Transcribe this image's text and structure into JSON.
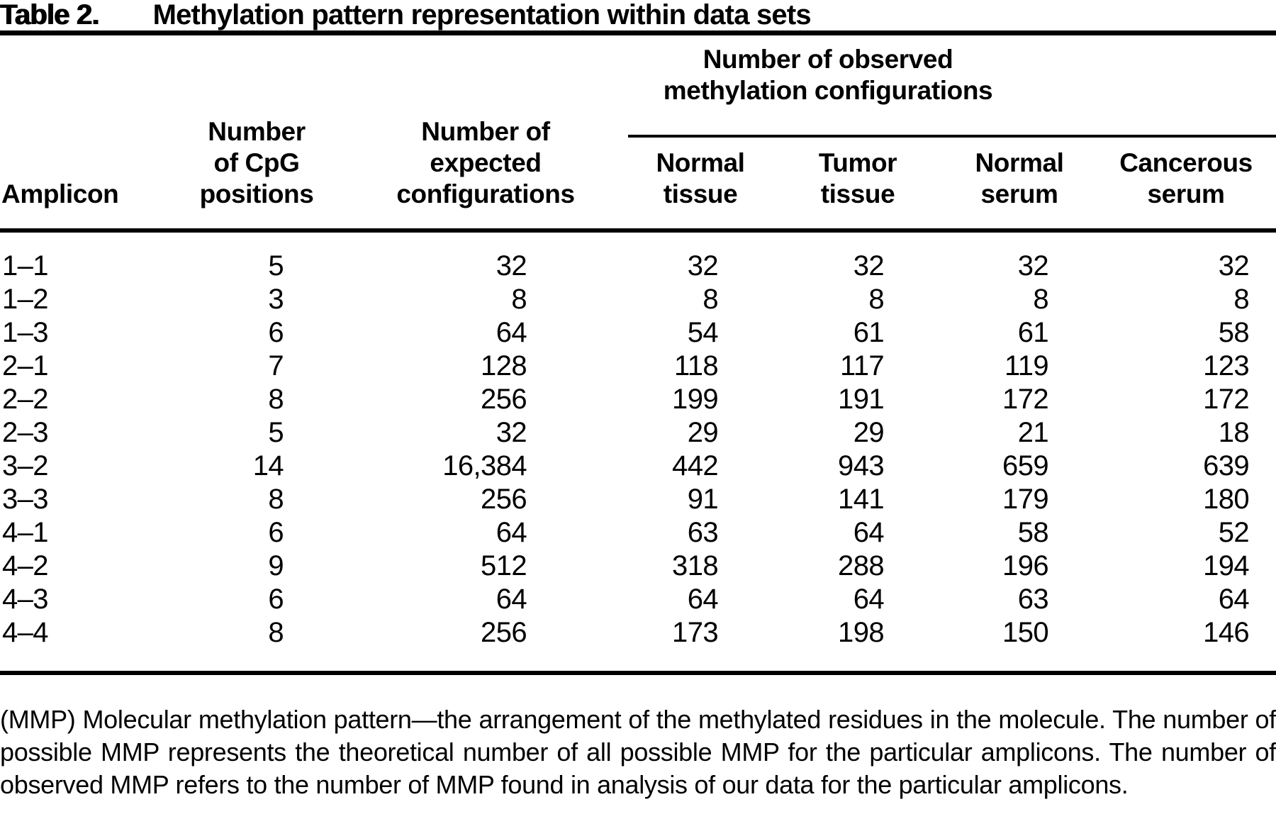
{
  "title": {
    "label": "Table 2.",
    "text": "Methylation pattern representation within data sets"
  },
  "table": {
    "columns": {
      "amplicon": "Amplicon",
      "cpg": {
        "line1": "Number",
        "line2": "of CpG",
        "line3": "positions"
      },
      "expected": {
        "line1": "Number of",
        "line2": "expected",
        "line3": "configurations"
      },
      "observed_group": {
        "line1": "Number of observed",
        "line2": "methylation configurations"
      },
      "observed_headers": [
        {
          "line1": "Normal",
          "line2": "tissue"
        },
        {
          "line1": "Tumor",
          "line2": "tissue"
        },
        {
          "line1": "Normal",
          "line2": "serum"
        },
        {
          "line1": "Cancerous",
          "line2": "serum"
        }
      ]
    },
    "rows": [
      {
        "amplicon": "1–1",
        "cpg": "5",
        "expected": "32",
        "normal_tissue": "32",
        "tumor_tissue": "32",
        "normal_serum": "32",
        "cancerous_serum": "32"
      },
      {
        "amplicon": "1–2",
        "cpg": "3",
        "expected": "8",
        "normal_tissue": "8",
        "tumor_tissue": "8",
        "normal_serum": "8",
        "cancerous_serum": "8"
      },
      {
        "amplicon": "1–3",
        "cpg": "6",
        "expected": "64",
        "normal_tissue": "54",
        "tumor_tissue": "61",
        "normal_serum": "61",
        "cancerous_serum": "58"
      },
      {
        "amplicon": "2–1",
        "cpg": "7",
        "expected": "128",
        "normal_tissue": "118",
        "tumor_tissue": "117",
        "normal_serum": "119",
        "cancerous_serum": "123"
      },
      {
        "amplicon": "2–2",
        "cpg": "8",
        "expected": "256",
        "normal_tissue": "199",
        "tumor_tissue": "191",
        "normal_serum": "172",
        "cancerous_serum": "172"
      },
      {
        "amplicon": "2–3",
        "cpg": "5",
        "expected": "32",
        "normal_tissue": "29",
        "tumor_tissue": "29",
        "normal_serum": "21",
        "cancerous_serum": "18"
      },
      {
        "amplicon": "3–2",
        "cpg": "14",
        "expected": "16,384",
        "normal_tissue": "442",
        "tumor_tissue": "943",
        "normal_serum": "659",
        "cancerous_serum": "639"
      },
      {
        "amplicon": "3–3",
        "cpg": "8",
        "expected": "256",
        "normal_tissue": "91",
        "tumor_tissue": "141",
        "normal_serum": "179",
        "cancerous_serum": "180"
      },
      {
        "amplicon": "4–1",
        "cpg": "6",
        "expected": "64",
        "normal_tissue": "63",
        "tumor_tissue": "64",
        "normal_serum": "58",
        "cancerous_serum": "52"
      },
      {
        "amplicon": "4–2",
        "cpg": "9",
        "expected": "512",
        "normal_tissue": "318",
        "tumor_tissue": "288",
        "normal_serum": "196",
        "cancerous_serum": "194"
      },
      {
        "amplicon": "4–3",
        "cpg": "6",
        "expected": "64",
        "normal_tissue": "64",
        "tumor_tissue": "64",
        "normal_serum": "63",
        "cancerous_serum": "64"
      },
      {
        "amplicon": "4–4",
        "cpg": "8",
        "expected": "256",
        "normal_tissue": "173",
        "tumor_tissue": "198",
        "normal_serum": "150",
        "cancerous_serum": "146"
      }
    ]
  },
  "footnote": "(MMP) Molecular methylation pattern—the arrangement of the methylated residues in the molecule. The number of possible MMP represents the theoretical number of all possible MMP for the particular amplicons. The number of observed MMP refers to the number of MMP found in analysis of our data for the particular amplicons.",
  "colors": {
    "text": "#000000",
    "background": "#ffffff",
    "rule": "#000000"
  }
}
